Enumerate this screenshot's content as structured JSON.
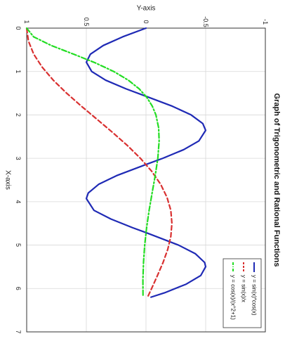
{
  "chart_data": {
    "type": "line",
    "title": "Graph of Trigonometric and Rational Functions",
    "xlabel": "X-axis",
    "ylabel": "Y-axis",
    "xlim": [
      0,
      7
    ],
    "ylim": [
      -1,
      1
    ],
    "xticks": [
      "0",
      "1",
      "2",
      "3",
      "4",
      "5",
      "6",
      "7"
    ],
    "yticks": [
      "-1",
      "-0.5",
      "0",
      "0.5",
      "1"
    ],
    "grid": true,
    "legend_position": "bottom-right",
    "rotation": "90deg clockwise",
    "series": [
      {
        "name": "y = sin(x)*cos(x)",
        "color": "#1f2ab5",
        "style": "solid",
        "x": [
          0,
          0.2,
          0.4,
          0.6,
          0.785,
          1.0,
          1.2,
          1.4,
          1.571,
          1.8,
          2.0,
          2.2,
          2.356,
          2.6,
          2.8,
          3.0,
          3.142,
          3.4,
          3.6,
          3.8,
          3.927,
          4.2,
          4.4,
          4.6,
          4.712,
          5.0,
          5.2,
          5.4,
          5.498,
          5.7,
          5.9,
          6.1,
          6.2
        ],
        "y": [
          0,
          0.195,
          0.358,
          0.466,
          0.5,
          0.455,
          0.338,
          0.167,
          0,
          -0.221,
          -0.378,
          -0.476,
          -0.5,
          -0.443,
          -0.316,
          -0.141,
          0,
          0.247,
          0.397,
          0.484,
          0.5,
          0.436,
          0.294,
          0.112,
          0,
          -0.272,
          -0.414,
          -0.491,
          -0.5,
          -0.459,
          -0.337,
          -0.155,
          -0.042
        ]
      },
      {
        "name": "y = sin(x)/x",
        "color": "#d93030",
        "style": "dashed",
        "x": [
          0.01,
          0.3,
          0.6,
          0.9,
          1.2,
          1.5,
          1.8,
          2.1,
          2.4,
          2.7,
          3.0,
          3.3,
          3.6,
          3.9,
          4.2,
          4.5,
          4.8,
          5.1,
          5.4,
          5.7,
          6.0,
          6.2
        ],
        "y": [
          1.0,
          0.985,
          0.941,
          0.87,
          0.777,
          0.665,
          0.541,
          0.411,
          0.282,
          0.158,
          0.047,
          -0.048,
          -0.123,
          -0.176,
          -0.208,
          -0.217,
          -0.208,
          -0.182,
          -0.143,
          -0.096,
          -0.047,
          -0.013
        ]
      },
      {
        "name": "y = cos(x)/(x^2+1)",
        "color": "#22dd22",
        "style": "dashdot",
        "x": [
          0,
          0.2,
          0.4,
          0.6,
          0.8,
          1.0,
          1.2,
          1.4,
          1.6,
          1.8,
          2.0,
          2.3,
          2.6,
          3.0,
          3.4,
          3.8,
          4.2,
          4.6,
          5.0,
          5.4,
          5.8,
          6.2
        ],
        "y": [
          1.0,
          0.942,
          0.794,
          0.607,
          0.425,
          0.27,
          0.148,
          0.057,
          -0.008,
          -0.053,
          -0.083,
          -0.106,
          -0.11,
          -0.099,
          -0.077,
          -0.051,
          -0.026,
          -0.005,
          0.011,
          0.021,
          0.026,
          0.025
        ]
      }
    ]
  }
}
